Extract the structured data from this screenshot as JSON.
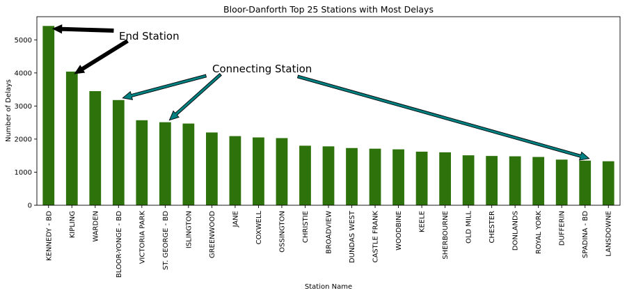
{
  "chart_data": {
    "type": "bar",
    "title": "Bloor-Danforth Top 25 Stations with Most Delays",
    "xlabel": "Station Name",
    "ylabel": "Number of Delays",
    "ylim": [
      0,
      5700
    ],
    "yticks": [
      0,
      1000,
      2000,
      3000,
      4000,
      5000
    ],
    "grid": false,
    "bar_color": "#2d720a",
    "categories": [
      "KENNEDY - BD",
      "KIPLING",
      "WARDEN",
      "BLOOR-YONGE - BD",
      "VICTORIA PARK",
      "ST. GEORGE - BD",
      "ISLINGTON",
      "GREENWOOD",
      "JANE",
      "COXWELL",
      "OSSINGTON",
      "CHRISTIE",
      "BROADVIEW",
      "DUNDAS WEST",
      "CASTLE FRANK",
      "WOODBINE",
      "KEELE",
      "SHERBOURNE",
      "OLD MILL",
      "CHESTER",
      "DONLANDS",
      "ROYAL YORK",
      "DUFFERIN",
      "SPADINA - BD",
      "LANSDOWNE"
    ],
    "values": [
      5420,
      4040,
      3450,
      3180,
      2570,
      2510,
      2470,
      2200,
      2090,
      2050,
      2030,
      1800,
      1780,
      1730,
      1710,
      1690,
      1620,
      1600,
      1510,
      1490,
      1480,
      1460,
      1380,
      1350,
      1330
    ],
    "annotations": [
      {
        "text": "End Station",
        "color": "#000000",
        "targets": [
          "KENNEDY - BD",
          "KIPLING"
        ]
      },
      {
        "text": "Connecting Station",
        "color": "#008080",
        "targets": [
          "BLOOR-YONGE - BD",
          "ST. GEORGE - BD",
          "SPADINA - BD"
        ]
      }
    ]
  }
}
